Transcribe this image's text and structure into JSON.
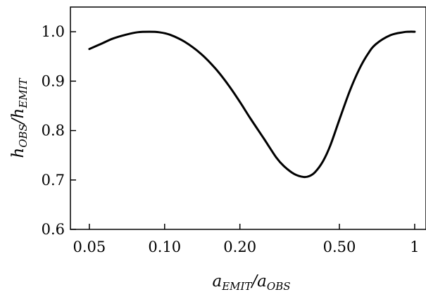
{
  "chart_data": {
    "type": "line",
    "x_scale": "log",
    "xlabel": {
      "base": "a",
      "sub": "EMIT",
      "sep": "/a",
      "sub2": "OBS"
    },
    "ylabel": {
      "base": "h",
      "sub": "OBS",
      "sep": "/h",
      "sub2": "EMIT"
    },
    "xlim": [
      0.042,
      1.11
    ],
    "ylim": [
      0.6,
      1.05
    ],
    "x_ticks": [
      0.05,
      0.1,
      0.2,
      0.5,
      1
    ],
    "x_tick_labels": [
      "0.05",
      "0.10",
      "0.20",
      "0.50",
      "1"
    ],
    "y_ticks": [
      0.6,
      0.7,
      0.8,
      0.9,
      1.0
    ],
    "y_tick_labels": [
      "0.6",
      "0.7",
      "0.8",
      "0.9",
      "1.0"
    ],
    "grid": false,
    "series": [
      {
        "color": "#000000",
        "x": [
          0.05,
          0.056,
          0.062,
          0.07,
          0.078,
          0.087,
          0.095,
          0.105,
          0.12,
          0.14,
          0.16,
          0.18,
          0.2,
          0.22,
          0.25,
          0.28,
          0.3,
          0.33,
          0.36,
          0.38,
          0.4,
          0.43,
          0.46,
          0.5,
          0.55,
          0.6,
          0.65,
          0.7,
          0.8,
          0.9,
          0.95,
          1.0
        ],
        "y": [
          0.965,
          0.976,
          0.986,
          0.994,
          0.999,
          1.0,
          0.999,
          0.994,
          0.98,
          0.955,
          0.925,
          0.892,
          0.858,
          0.825,
          0.783,
          0.745,
          0.728,
          0.712,
          0.706,
          0.708,
          0.716,
          0.738,
          0.77,
          0.822,
          0.88,
          0.924,
          0.955,
          0.975,
          0.993,
          0.999,
          1.0,
          1.0
        ]
      }
    ]
  }
}
